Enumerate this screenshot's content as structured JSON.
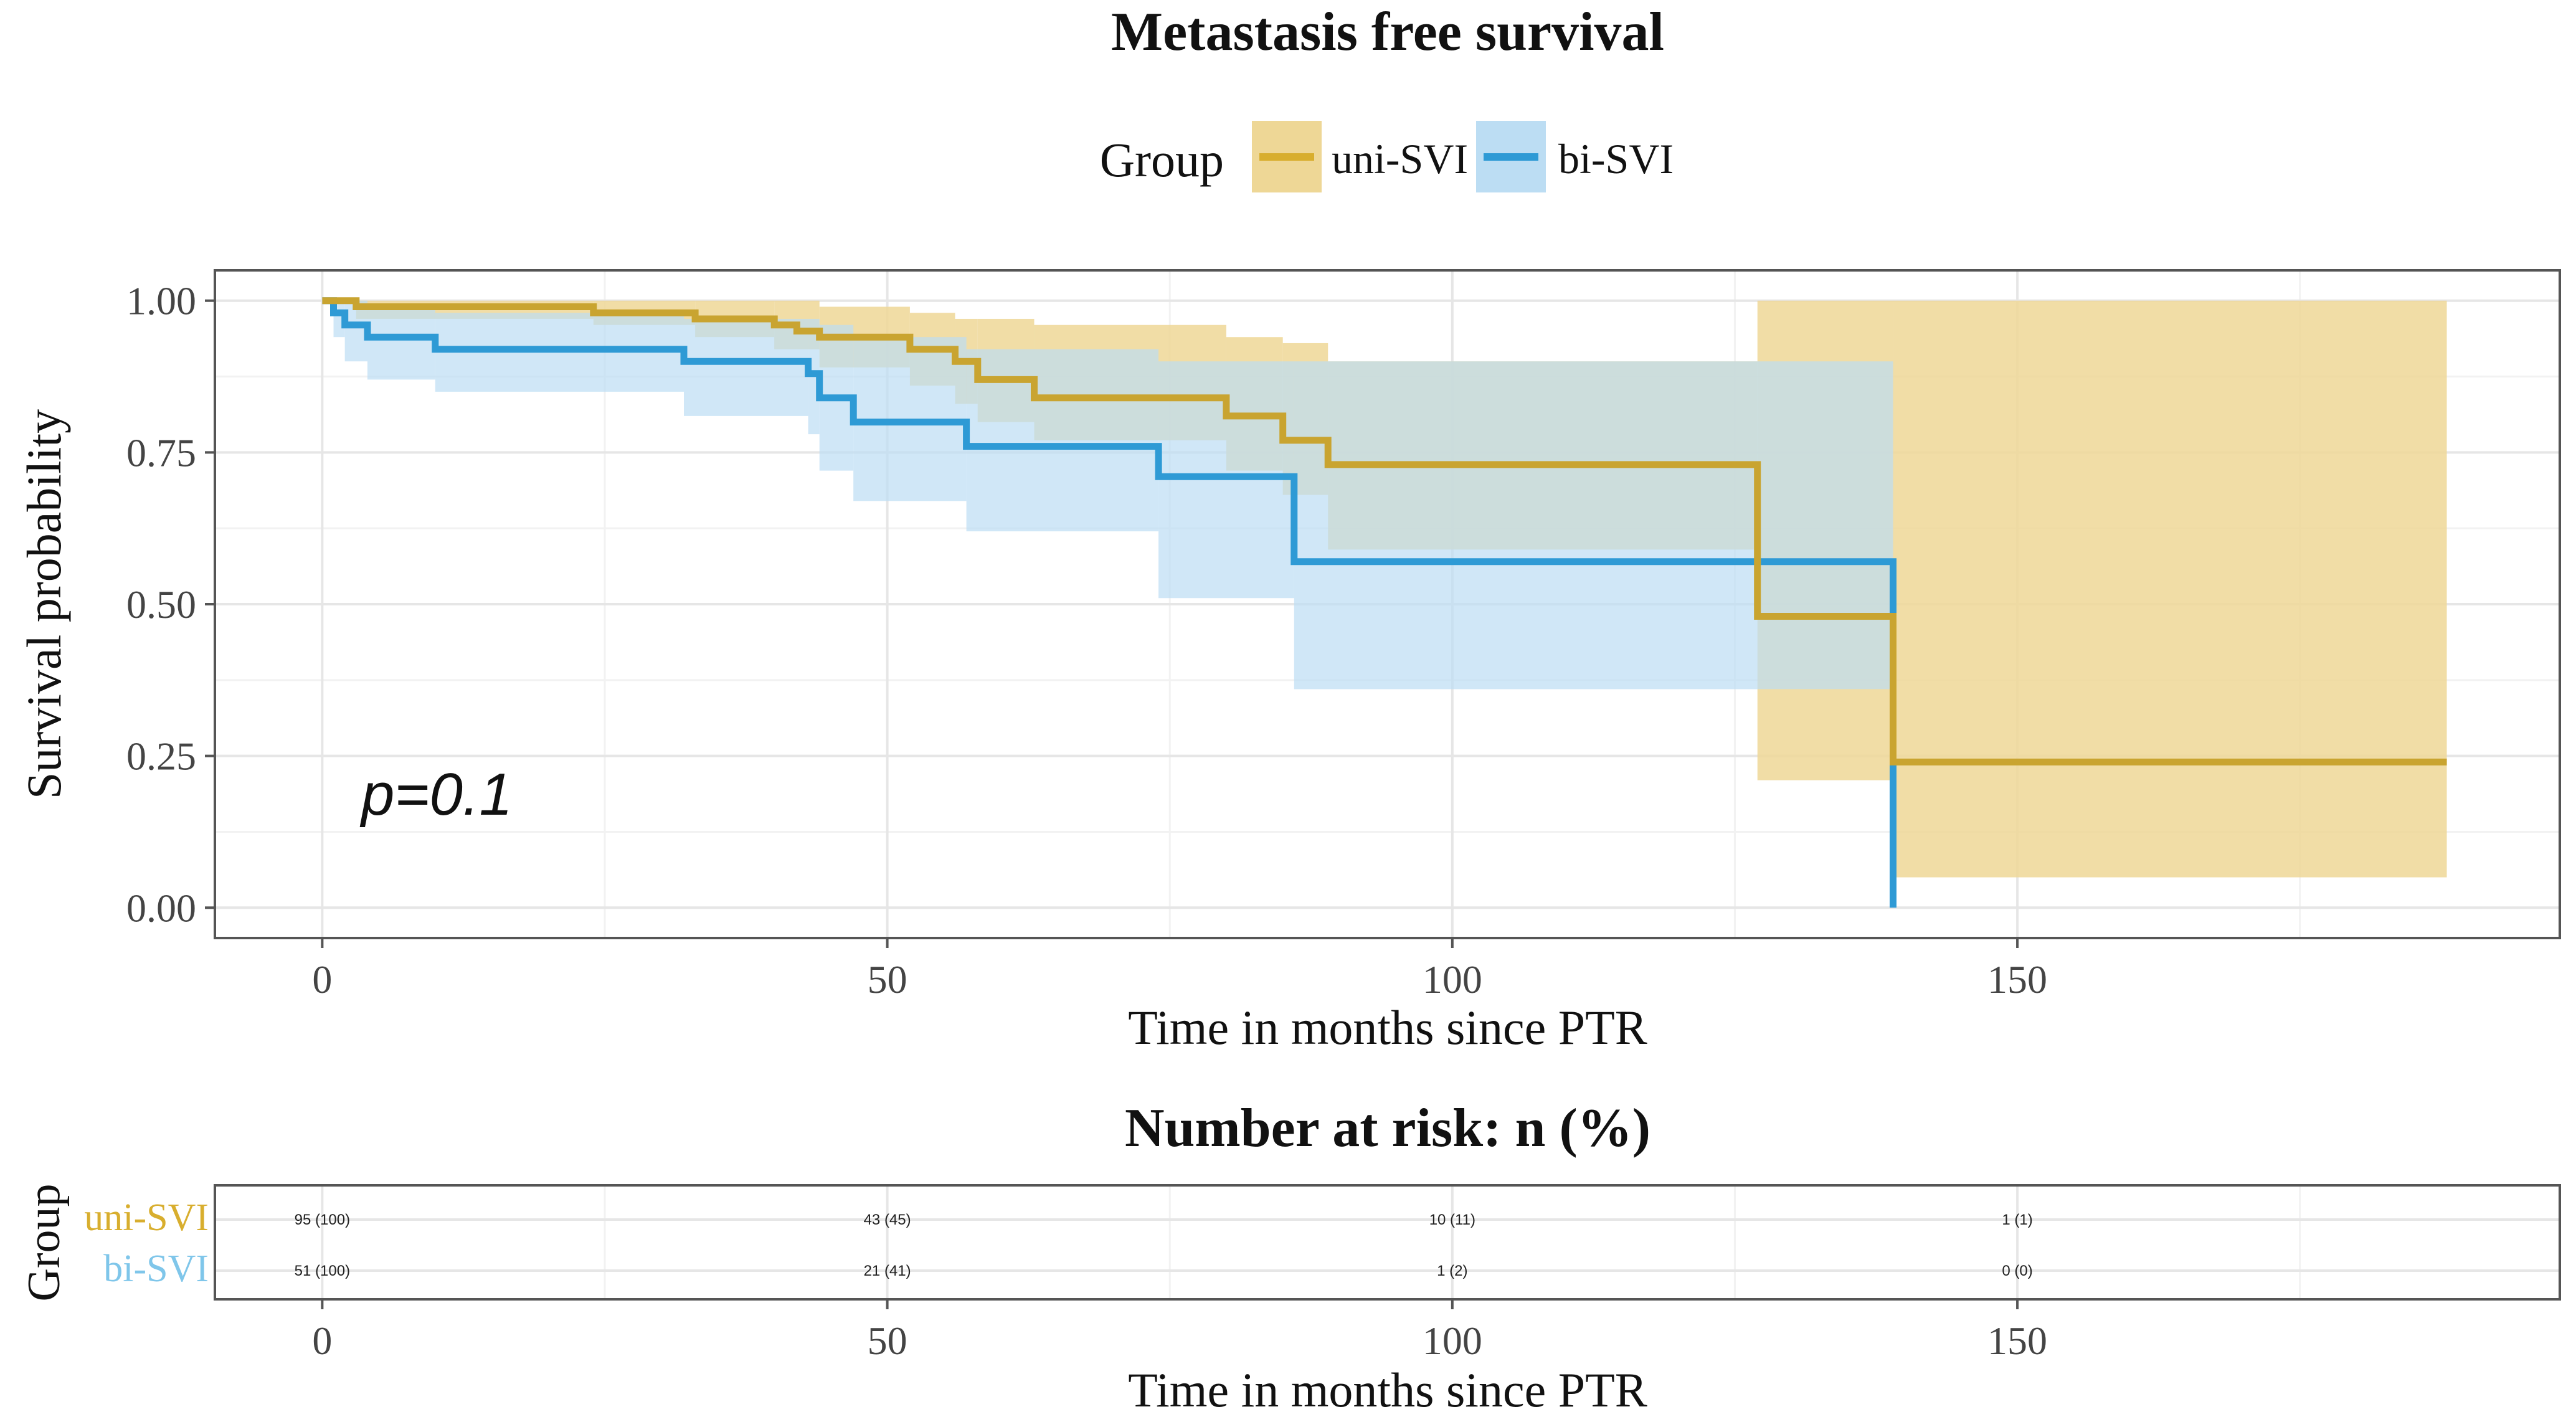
{
  "chart_data": {
    "type": "line",
    "subtype": "kaplan-meier",
    "title": "Metastasis free survival",
    "legend": {
      "title": "Group",
      "placement": "top",
      "entries": [
        "uni-SVI",
        "bi-SVI"
      ]
    },
    "xlabel": "Time in months since PTR",
    "ylabel": "Survival probability",
    "xlim": [
      -9.5,
      198
    ],
    "ylim": [
      -0.05,
      1.05
    ],
    "xticks": [
      0,
      50,
      100,
      150
    ],
    "xtick_labels": [
      "0",
      "50",
      "100",
      "150"
    ],
    "yticks": [
      0,
      0.25,
      0.5,
      0.75,
      1.0
    ],
    "ytick_labels": [
      "0.00",
      "0.25",
      "0.50",
      "0.75",
      "1.00"
    ],
    "grid": true,
    "annotation": "p=0.1",
    "series": [
      {
        "name": "uni-SVI",
        "color": "#D8AE2E",
        "band_color": "#EED796",
        "steps": [
          [
            0,
            1.0
          ],
          [
            3,
            0.99
          ],
          [
            24,
            0.98
          ],
          [
            33,
            0.97
          ],
          [
            40,
            0.96
          ],
          [
            42,
            0.95
          ],
          [
            44,
            0.94
          ],
          [
            52,
            0.92
          ],
          [
            56,
            0.9
          ],
          [
            58,
            0.87
          ],
          [
            63,
            0.84
          ],
          [
            80,
            0.81
          ],
          [
            85,
            0.77
          ],
          [
            89,
            0.73
          ],
          [
            127,
            0.73
          ],
          [
            127,
            0.48
          ],
          [
            139,
            0.48
          ],
          [
            139,
            0.24
          ],
          [
            188,
            0.24
          ]
        ],
        "upper": [
          [
            0,
            1.0
          ],
          [
            3,
            1.0
          ],
          [
            24,
            1.0
          ],
          [
            40,
            1.0
          ],
          [
            44,
            0.99
          ],
          [
            52,
            0.98
          ],
          [
            56,
            0.97
          ],
          [
            63,
            0.96
          ],
          [
            80,
            0.94
          ],
          [
            85,
            0.93
          ],
          [
            89,
            0.9
          ],
          [
            127,
            0.9
          ],
          [
            127,
            1.0
          ],
          [
            139,
            1.0
          ],
          [
            188,
            1.0
          ]
        ],
        "lower": [
          [
            0,
            1.0
          ],
          [
            3,
            0.97
          ],
          [
            24,
            0.96
          ],
          [
            33,
            0.94
          ],
          [
            40,
            0.92
          ],
          [
            44,
            0.89
          ],
          [
            52,
            0.86
          ],
          [
            56,
            0.83
          ],
          [
            58,
            0.8
          ],
          [
            63,
            0.77
          ],
          [
            80,
            0.72
          ],
          [
            85,
            0.68
          ],
          [
            89,
            0.59
          ],
          [
            127,
            0.59
          ],
          [
            127,
            0.21
          ],
          [
            139,
            0.21
          ],
          [
            139,
            0.05
          ],
          [
            188,
            0.05
          ]
        ]
      },
      {
        "name": "bi-SVI",
        "color": "#2E9AD5",
        "band_color": "#BCDDF3",
        "steps": [
          [
            0,
            1.0
          ],
          [
            1,
            0.98
          ],
          [
            2,
            0.96
          ],
          [
            4,
            0.94
          ],
          [
            10,
            0.92
          ],
          [
            32,
            0.9
          ],
          [
            43,
            0.88
          ],
          [
            44,
            0.84
          ],
          [
            47,
            0.8
          ],
          [
            57,
            0.76
          ],
          [
            74,
            0.71
          ],
          [
            86,
            0.57
          ],
          [
            139,
            0.57
          ],
          [
            139,
            0.0
          ]
        ],
        "upper": [
          [
            0,
            1.0
          ],
          [
            2,
            1.0
          ],
          [
            4,
            0.99
          ],
          [
            10,
            0.98
          ],
          [
            32,
            0.97
          ],
          [
            44,
            0.96
          ],
          [
            47,
            0.94
          ],
          [
            57,
            0.92
          ],
          [
            74,
            0.9
          ],
          [
            139,
            0.9
          ]
        ],
        "lower": [
          [
            0,
            1.0
          ],
          [
            1,
            0.94
          ],
          [
            2,
            0.9
          ],
          [
            4,
            0.87
          ],
          [
            10,
            0.85
          ],
          [
            32,
            0.81
          ],
          [
            43,
            0.78
          ],
          [
            44,
            0.72
          ],
          [
            47,
            0.67
          ],
          [
            57,
            0.62
          ],
          [
            74,
            0.51
          ],
          [
            86,
            0.36
          ],
          [
            139,
            0.36
          ]
        ]
      }
    ],
    "risk_table": {
      "title": "Number at risk: n (%)",
      "ylabel": "Group",
      "xlabel": "Time in months since PTR",
      "times": [
        0,
        50,
        100,
        150
      ],
      "rows": [
        {
          "group": "uni-SVI",
          "color": "#D8AE2E",
          "values": [
            "95 (100)",
            "43 (45)",
            "10 (11)",
            "1 (1)"
          ]
        },
        {
          "group": "bi-SVI",
          "color": "#7FC6EA",
          "values": [
            "51 (100)",
            "21 (41)",
            "1 (2)",
            "0 (0)"
          ]
        }
      ]
    }
  }
}
